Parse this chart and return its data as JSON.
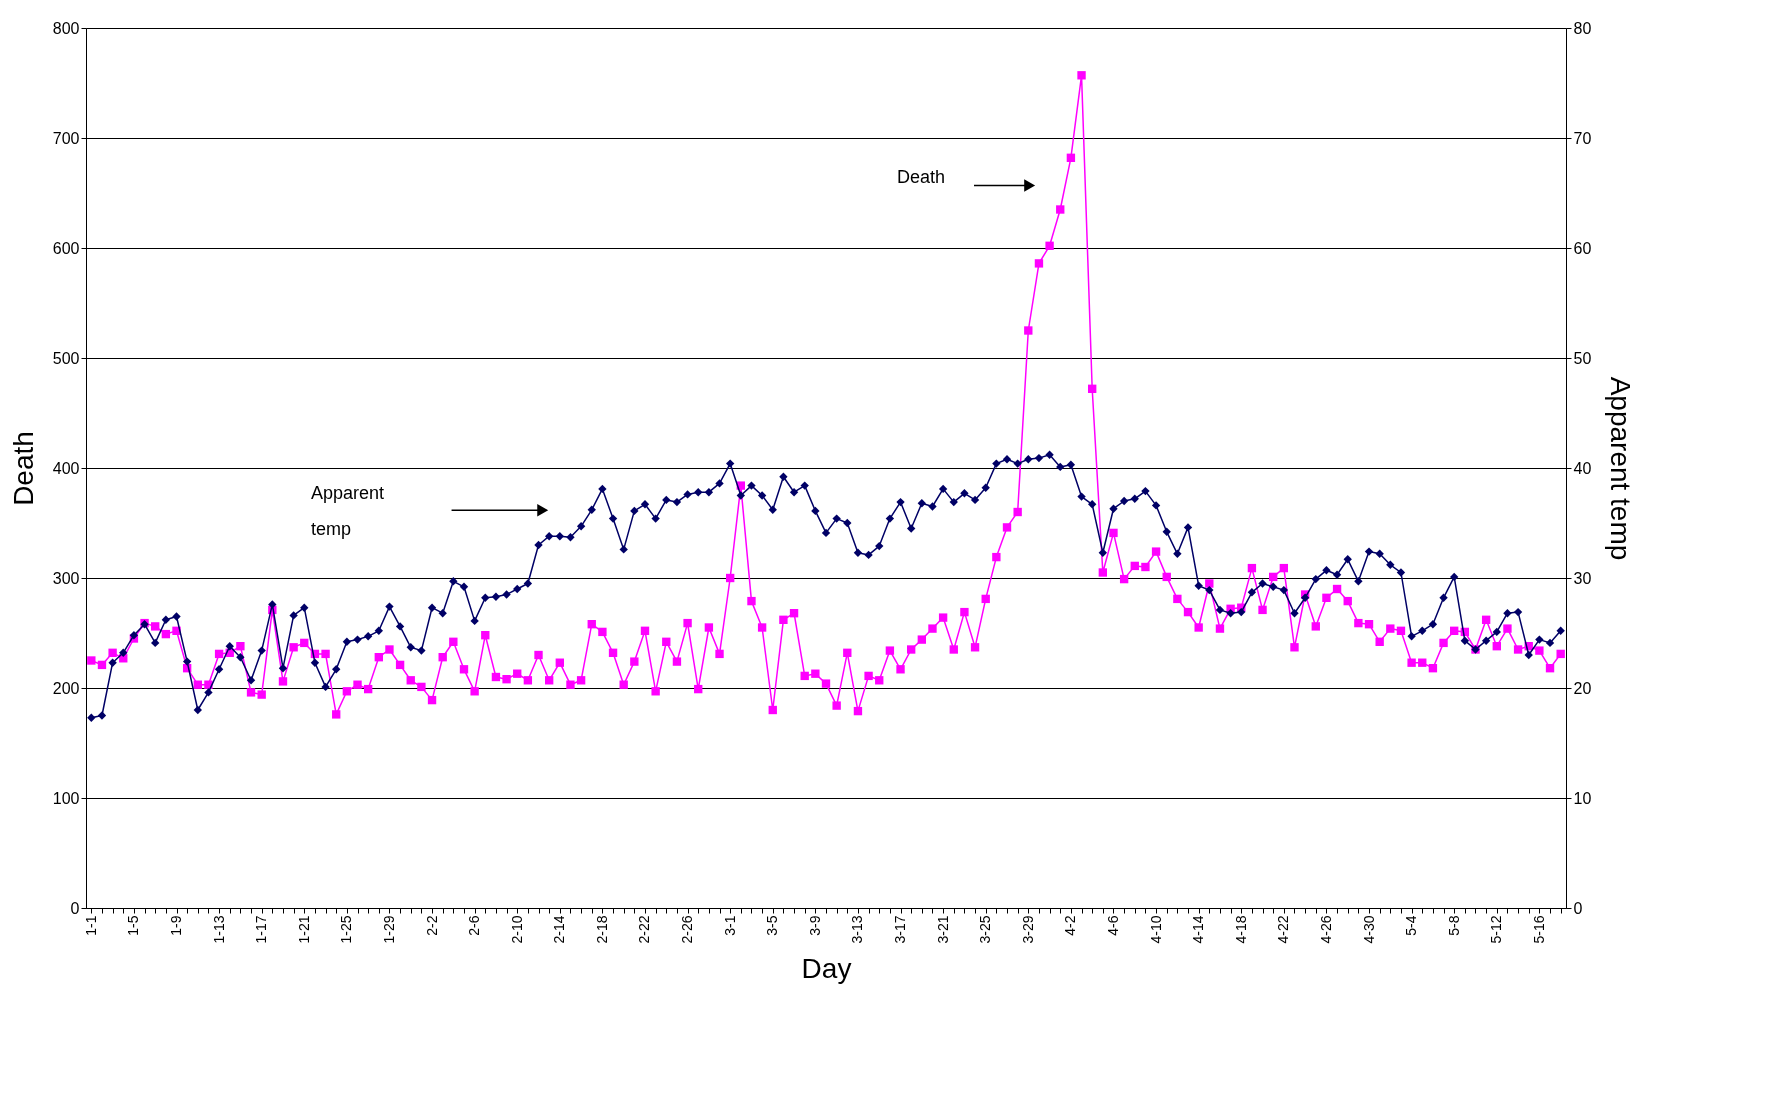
{
  "chart_data": {
    "type": "line",
    "xlabel": "Day",
    "ylabel": "Death",
    "y2label": "Apparent temp",
    "categories": [
      "1-1",
      null,
      null,
      null,
      "1-5",
      null,
      null,
      null,
      "1-9",
      null,
      null,
      null,
      "1-13",
      null,
      null,
      null,
      "1-17",
      null,
      null,
      null,
      "1-21",
      null,
      null,
      null,
      "1-25",
      null,
      null,
      null,
      "1-29",
      null,
      null,
      null,
      "2-2",
      null,
      null,
      null,
      "2-6",
      null,
      null,
      null,
      "2-10",
      null,
      null,
      null,
      "2-14",
      null,
      null,
      null,
      "2-18",
      null,
      null,
      null,
      "2-22",
      null,
      null,
      null,
      "2-26",
      null,
      null,
      null,
      "3-1",
      null,
      null,
      null,
      "3-5",
      null,
      null,
      null,
      "3-9",
      null,
      null,
      null,
      "3-13",
      null,
      null,
      null,
      "3-17",
      null,
      null,
      null,
      "3-21",
      null,
      null,
      null,
      "3-25",
      null,
      null,
      null,
      "3-29",
      null,
      null,
      null,
      "4-2",
      null,
      null,
      null,
      "4-6",
      null,
      null,
      null,
      "4-10",
      null,
      null,
      null,
      "4-14",
      null,
      null,
      null,
      "4-18",
      null,
      null,
      null,
      "4-22",
      null,
      null,
      null,
      "4-26",
      null,
      null,
      null,
      "4-30",
      null,
      null,
      null,
      "5-4",
      null,
      null,
      null,
      "5-8",
      null,
      null,
      null,
      "5-12",
      null,
      null,
      null,
      "5-16",
      null,
      null
    ],
    "series": [
      {
        "color": "#ff00ff",
        "marker": "square",
        "values": [
          225,
          221,
          232,
          227,
          245,
          259,
          256,
          249,
          252,
          218,
          203,
          203,
          231,
          232,
          238,
          196,
          194,
          271,
          206,
          237,
          241,
          231,
          231,
          176,
          197,
          203,
          199,
          228,
          235,
          221,
          207,
          201,
          189,
          228,
          242,
          217,
          197,
          248,
          210,
          208,
          213,
          207,
          230,
          207,
          223,
          203,
          207,
          258,
          251,
          232,
          203,
          224,
          252,
          197,
          242,
          224,
          259,
          199,
          255,
          231,
          300,
          384,
          279,
          255,
          180,
          262,
          268,
          211,
          213,
          204,
          184,
          232,
          179,
          211,
          207,
          234,
          217,
          235,
          244,
          254,
          264,
          235,
          269,
          237,
          281,
          319,
          346,
          360,
          525,
          586,
          602,
          635,
          682,
          757,
          472,
          305,
          341,
          299,
          311,
          310,
          324,
          301,
          281,
          269,
          255,
          295,
          254,
          272,
          273,
          309,
          271,
          301,
          309,
          237,
          285,
          256,
          282,
          290,
          279,
          259,
          258,
          242,
          254,
          252,
          223,
          223,
          218,
          241,
          252,
          251,
          235,
          262,
          238,
          254,
          235,
          238,
          234,
          218,
          231
        ]
      },
      {
        "color": "#000066",
        "marker": "diamond",
        "axis": "y2",
        "values": [
          17.3,
          17.5,
          22.3,
          23.2,
          24.8,
          25.8,
          24.1,
          26.2,
          26.5,
          22.4,
          18.0,
          19.6,
          21.7,
          23.8,
          22.8,
          20.7,
          23.4,
          27.6,
          21.8,
          26.6,
          27.3,
          22.3,
          20.1,
          21.7,
          24.2,
          24.4,
          24.7,
          25.2,
          27.4,
          25.6,
          23.7,
          23.4,
          27.3,
          26.8,
          29.7,
          29.2,
          26.1,
          28.2,
          28.3,
          28.5,
          29.0,
          29.5,
          33.0,
          33.8,
          33.8,
          33.7,
          34.7,
          36.2,
          38.1,
          35.4,
          32.6,
          36.1,
          36.7,
          35.4,
          37.1,
          36.9,
          37.6,
          37.8,
          37.8,
          38.6,
          40.4,
          37.5,
          38.4,
          37.5,
          36.2,
          39.2,
          37.8,
          38.4,
          36.1,
          34.1,
          35.4,
          35.0,
          32.3,
          32.1,
          32.9,
          35.4,
          36.9,
          34.5,
          36.8,
          36.5,
          38.1,
          36.9,
          37.7,
          37.1,
          38.2,
          40.4,
          40.8,
          40.4,
          40.8,
          40.9,
          41.2,
          40.1,
          40.3,
          37.4,
          36.7,
          32.3,
          36.3,
          37.0,
          37.2,
          37.9,
          36.6,
          34.2,
          32.2,
          34.6,
          29.3,
          28.9,
          27.1,
          26.8,
          26.9,
          28.7,
          29.5,
          29.2,
          28.9,
          26.8,
          28.2,
          29.9,
          30.7,
          30.3,
          31.7,
          29.7,
          32.4,
          32.2,
          31.2,
          30.5,
          24.7,
          25.2,
          25.8,
          28.2,
          30.1,
          24.3,
          23.5,
          24.3,
          25.1,
          26.8,
          26.9,
          23.0,
          24.4,
          24.1,
          25.2
        ]
      }
    ],
    "ylim": [
      0,
      800
    ],
    "yticks": [
      0,
      100,
      200,
      300,
      400,
      500,
      600,
      700,
      800
    ],
    "y2lim": [
      0,
      80
    ],
    "y2ticks": [
      0,
      10,
      20,
      30,
      40,
      50,
      60,
      70,
      80
    ],
    "annotations": [
      "Death",
      "Apparent temp"
    ],
    "grid": "y",
    "line_style": "solid"
  }
}
